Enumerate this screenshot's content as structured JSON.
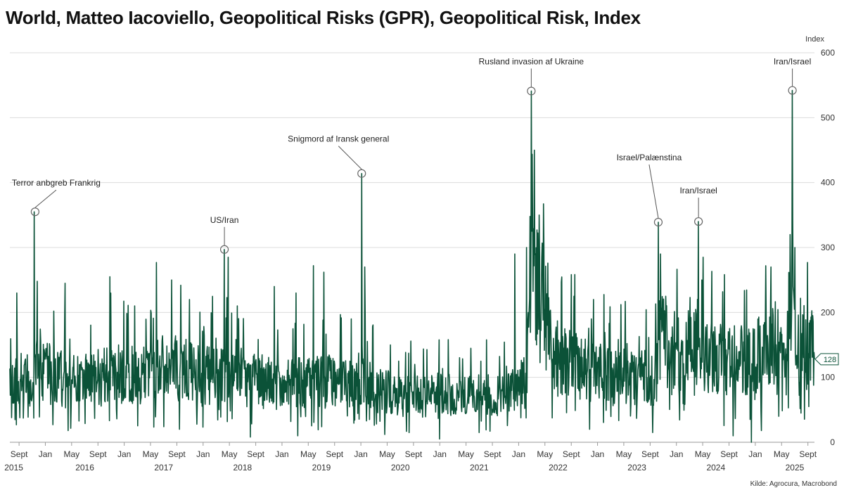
{
  "chart_data": {
    "type": "line",
    "title": "World, Matteo Iacoviello, Geopolitical Risks (GPR), Geopolitical Risk, Index",
    "ylabel": "Index",
    "xlabel": "",
    "ylim": [
      0,
      600
    ],
    "yticks": [
      0,
      100,
      200,
      300,
      400,
      500,
      600
    ],
    "x_range": [
      2015.55,
      2025.75
    ],
    "series_color": "#0b5238",
    "x_ticks": [
      {
        "label": "Sept",
        "t": 2015.667
      },
      {
        "label": "Jan",
        "t": 2016.0
      },
      {
        "label": "May",
        "t": 2016.333
      },
      {
        "label": "Sept",
        "t": 2016.667
      },
      {
        "label": "Jan",
        "t": 2017.0
      },
      {
        "label": "May",
        "t": 2017.333
      },
      {
        "label": "Sept",
        "t": 2017.667
      },
      {
        "label": "Jan",
        "t": 2018.0
      },
      {
        "label": "May",
        "t": 2018.333
      },
      {
        "label": "Sept",
        "t": 2018.667
      },
      {
        "label": "Jan",
        "t": 2019.0
      },
      {
        "label": "May",
        "t": 2019.333
      },
      {
        "label": "Sept",
        "t": 2019.667
      },
      {
        "label": "Jan",
        "t": 2020.0
      },
      {
        "label": "May",
        "t": 2020.333
      },
      {
        "label": "Sept",
        "t": 2020.667
      },
      {
        "label": "Jan",
        "t": 2021.0
      },
      {
        "label": "May",
        "t": 2021.333
      },
      {
        "label": "Sept",
        "t": 2021.667
      },
      {
        "label": "Jan",
        "t": 2022.0
      },
      {
        "label": "May",
        "t": 2022.333
      },
      {
        "label": "Sept",
        "t": 2022.667
      },
      {
        "label": "Jan",
        "t": 2023.0
      },
      {
        "label": "May",
        "t": 2023.333
      },
      {
        "label": "Sept",
        "t": 2023.667
      },
      {
        "label": "Jan",
        "t": 2024.0
      },
      {
        "label": "May",
        "t": 2024.333
      },
      {
        "label": "Sept",
        "t": 2024.667
      },
      {
        "label": "Jan",
        "t": 2025.0
      },
      {
        "label": "May",
        "t": 2025.333
      },
      {
        "label": "Sept",
        "t": 2025.667
      }
    ],
    "year_labels": [
      {
        "label": "2015",
        "t": 2015.6
      },
      {
        "label": "2016",
        "t": 2016.5
      },
      {
        "label": "2017",
        "t": 2017.5
      },
      {
        "label": "2018",
        "t": 2018.5
      },
      {
        "label": "2019",
        "t": 2019.5
      },
      {
        "label": "2020",
        "t": 2020.5
      },
      {
        "label": "2021",
        "t": 2021.5
      },
      {
        "label": "2022",
        "t": 2022.5
      },
      {
        "label": "2023",
        "t": 2023.5
      },
      {
        "label": "2024",
        "t": 2024.5
      },
      {
        "label": "2025",
        "t": 2025.5
      }
    ],
    "annotations": [
      {
        "label": "Terror anbgreb Frankrig",
        "t": 2015.87,
        "value": 355
      },
      {
        "label": "US/Iran",
        "t": 2018.27,
        "value": 297
      },
      {
        "label": "Snigmord af Iransk general",
        "t": 2020.01,
        "value": 414
      },
      {
        "label": "Rusland invasion af Ukraine",
        "t": 2022.16,
        "value": 541
      },
      {
        "label": "Israel/Palænstina",
        "t": 2023.77,
        "value": 339
      },
      {
        "label": "Iran/Israel",
        "t": 2024.28,
        "value": 340
      },
      {
        "label": "Iran/Israel",
        "t": 2025.47,
        "value": 542
      }
    ],
    "last_value": {
      "label": "128",
      "value": 128
    },
    "series": [
      {
        "name": "Geopolitical Risk Index",
        "levels": [
          [
            2015.55,
            105
          ],
          [
            2015.85,
            95
          ],
          [
            2015.88,
            150
          ],
          [
            2015.96,
            118
          ],
          [
            2016.1,
            100
          ],
          [
            2016.4,
            92
          ],
          [
            2016.7,
            100
          ],
          [
            2016.9,
            108
          ],
          [
            2017.2,
            100
          ],
          [
            2017.5,
            120
          ],
          [
            2017.8,
            110
          ],
          [
            2018.0,
            100
          ],
          [
            2018.25,
            108
          ],
          [
            2018.35,
            125
          ],
          [
            2018.5,
            100
          ],
          [
            2018.8,
            92
          ],
          [
            2019.0,
            88
          ],
          [
            2019.4,
            92
          ],
          [
            2019.7,
            95
          ],
          [
            2019.98,
            95
          ],
          [
            2020.05,
            110
          ],
          [
            2020.15,
            85
          ],
          [
            2020.5,
            72
          ],
          [
            2020.8,
            70
          ],
          [
            2021.0,
            75
          ],
          [
            2021.3,
            72
          ],
          [
            2021.6,
            72
          ],
          [
            2021.9,
            75
          ],
          [
            2022.1,
            95
          ],
          [
            2022.16,
            250
          ],
          [
            2022.25,
            230
          ],
          [
            2022.35,
            165
          ],
          [
            2022.5,
            128
          ],
          [
            2022.7,
            120
          ],
          [
            2022.9,
            110
          ],
          [
            2023.2,
            100
          ],
          [
            2023.5,
            98
          ],
          [
            2023.75,
            98
          ],
          [
            2023.78,
            170
          ],
          [
            2023.9,
            150
          ],
          [
            2024.1,
            140
          ],
          [
            2024.28,
            155
          ],
          [
            2024.4,
            130
          ],
          [
            2024.6,
            125
          ],
          [
            2024.9,
            125
          ],
          [
            2025.1,
            140
          ],
          [
            2025.4,
            160
          ],
          [
            2025.47,
            250
          ],
          [
            2025.55,
            155
          ],
          [
            2025.75,
            140
          ]
        ],
        "spikes": [
          [
            2015.64,
            230
          ],
          [
            2015.86,
            355
          ],
          [
            2015.9,
            248
          ],
          [
            2016.25,
            245
          ],
          [
            2016.82,
            255
          ],
          [
            2017.13,
            210
          ],
          [
            2017.41,
            277
          ],
          [
            2017.6,
            250
          ],
          [
            2018.27,
            297
          ],
          [
            2018.32,
            285
          ],
          [
            2018.9,
            240
          ],
          [
            2019.18,
            230
          ],
          [
            2019.4,
            272
          ],
          [
            2019.53,
            262
          ],
          [
            2020.01,
            414
          ],
          [
            2020.05,
            270
          ],
          [
            2021.95,
            290
          ],
          [
            2022.1,
            300
          ],
          [
            2022.16,
            541
          ],
          [
            2022.2,
            450
          ],
          [
            2022.26,
            350
          ],
          [
            2022.32,
            300
          ],
          [
            2022.7,
            225
          ],
          [
            2022.95,
            220
          ],
          [
            2023.77,
            339
          ],
          [
            2023.8,
            290
          ],
          [
            2024.28,
            340
          ],
          [
            2024.32,
            250
          ],
          [
            2024.95,
            245
          ],
          [
            2025.2,
            270
          ],
          [
            2025.44,
            320
          ],
          [
            2025.47,
            542
          ],
          [
            2025.5,
            300
          ],
          [
            2025.66,
            277
          ]
        ],
        "dips": [
          [
            2016.29,
            18
          ],
          [
            2017.7,
            20
          ],
          [
            2018.6,
            8
          ],
          [
            2019.2,
            10
          ],
          [
            2020.3,
            12
          ],
          [
            2021.0,
            5
          ],
          [
            2021.5,
            15
          ],
          [
            2022.9,
            20
          ],
          [
            2023.7,
            15
          ],
          [
            2024.72,
            10
          ],
          [
            2024.95,
            0
          ],
          [
            2025.08,
            18
          ],
          [
            2025.3,
            40
          ],
          [
            2025.58,
            45
          ],
          [
            2025.68,
            55
          ]
        ]
      }
    ]
  },
  "footer": {
    "source": "Kilde: Agrocura, Macrobond"
  }
}
